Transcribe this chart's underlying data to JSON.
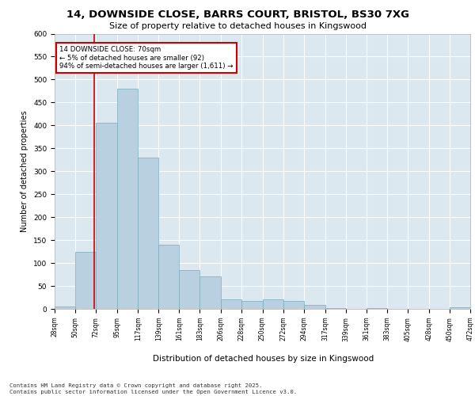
{
  "title_line1": "14, DOWNSIDE CLOSE, BARRS COURT, BRISTOL, BS30 7XG",
  "title_line2": "Size of property relative to detached houses in Kingswood",
  "xlabel": "Distribution of detached houses by size in Kingswood",
  "ylabel": "Number of detached properties",
  "background_color": "#dce8f0",
  "bar_color": "#b8d0e0",
  "bar_edge_color": "#7aaabb",
  "grid_color": "#ffffff",
  "vline_color": "#cc0000",
  "vline_x": 70,
  "annotation_text": "14 DOWNSIDE CLOSE: 70sqm\n← 5% of detached houses are smaller (92)\n94% of semi-detached houses are larger (1,611) →",
  "annotation_box_color": "#ffffff",
  "annotation_border_color": "#cc0000",
  "footer_text": "Contains HM Land Registry data © Crown copyright and database right 2025.\nContains public sector information licensed under the Open Government Licence v3.0.",
  "bins": [
    28,
    50,
    72,
    95,
    117,
    139,
    161,
    183,
    206,
    228,
    250,
    272,
    294,
    317,
    339,
    361,
    383,
    405,
    428,
    450,
    472
  ],
  "counts": [
    5,
    125,
    405,
    480,
    330,
    140,
    85,
    70,
    20,
    18,
    20,
    18,
    8,
    1,
    0,
    1,
    0,
    0,
    0,
    3
  ],
  "ylim": [
    0,
    600
  ],
  "yticks": [
    0,
    50,
    100,
    150,
    200,
    250,
    300,
    350,
    400,
    450,
    500,
    550,
    600
  ]
}
